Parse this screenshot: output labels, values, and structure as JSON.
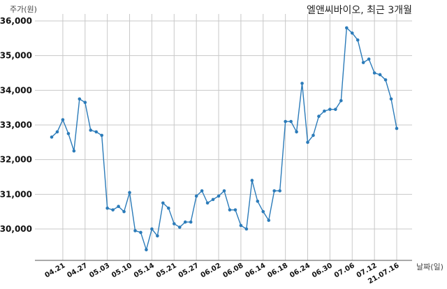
{
  "chart_data": {
    "type": "line",
    "title": "엘앤씨바이오, 최근 3개월",
    "ylabel": "주가(원)",
    "xlabel": "날짜(일)",
    "ylim": [
      29100,
      36100
    ],
    "yticks": [
      30000,
      31000,
      32000,
      33000,
      34000,
      35000,
      36000
    ],
    "ytick_labels": [
      "30,000",
      "31,000",
      "32,000",
      "33,000",
      "34,000",
      "35,000",
      "36,000"
    ],
    "xtick_labels": [
      "04.21",
      "04.27",
      "05.03",
      "05.10",
      "05.14",
      "05.21",
      "05.27",
      "06.02",
      "06.08",
      "06.14",
      "06.18",
      "06.24",
      "06.30",
      "07.06",
      "07.12",
      "21.07.16"
    ],
    "xtick_index": [
      2,
      6,
      10,
      14,
      18,
      22,
      26,
      30,
      34,
      38,
      42,
      46,
      50,
      54,
      58,
      62
    ],
    "grid": true,
    "color": "#2b7bb9",
    "series": [
      {
        "values": [
          32650,
          32800,
          33150,
          32750,
          32250,
          33750,
          33650,
          32850,
          32800,
          32700,
          30600,
          30550,
          30650,
          30500,
          31050,
          29950,
          29900,
          29400,
          30000,
          29800,
          30750,
          30600,
          30150,
          30050,
          30200,
          30200,
          30950,
          31100,
          30750,
          30850,
          30950,
          31100,
          30550,
          30550,
          30100,
          30000,
          31400,
          30800,
          30500,
          30250,
          31100,
          31100,
          33100,
          33100,
          32800,
          34200,
          32500,
          32700,
          33250,
          33400,
          33450,
          33450,
          33700,
          35800,
          35650,
          35450,
          34800,
          34900,
          34500,
          34450,
          34300,
          33750,
          32900
        ]
      }
    ]
  }
}
